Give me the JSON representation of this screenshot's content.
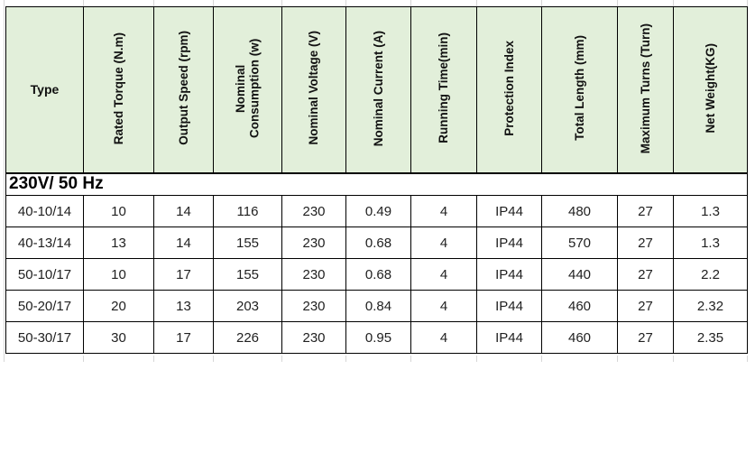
{
  "sheet": {
    "background": "#ffffff",
    "gridline_color": "#d6d6d6"
  },
  "table": {
    "header_fill": "#e2efda",
    "border_color": "#000000",
    "columns": [
      "Type",
      "Rated Torque (N.m)",
      "Output Speed (rpm)",
      "Nominal Consumption (w)",
      "Nominal Voltage (V)",
      "Nominal Current (A)",
      "Running Time(min)",
      "Protection Index",
      "Total Length (mm)",
      "Maximum Turns (Turn)",
      "Net Weight(KG)"
    ],
    "section_label": "230V/ 50 Hz",
    "rows": [
      [
        "40-10/14",
        "10",
        "14",
        "116",
        "230",
        "0.49",
        "4",
        "IP44",
        "480",
        "27",
        "1.3"
      ],
      [
        "40-13/14",
        "13",
        "14",
        "155",
        "230",
        "0.68",
        "4",
        "IP44",
        "570",
        "27",
        "1.3"
      ],
      [
        "50-10/17",
        "10",
        "17",
        "155",
        "230",
        "0.68",
        "4",
        "IP44",
        "440",
        "27",
        "2.2"
      ],
      [
        "50-20/17",
        "20",
        "13",
        "203",
        "230",
        "0.84",
        "4",
        "IP44",
        "460",
        "27",
        "2.32"
      ],
      [
        "50-30/17",
        "30",
        "17",
        "226",
        "230",
        "0.95",
        "4",
        "IP44",
        "460",
        "27",
        "2.35"
      ]
    ]
  }
}
